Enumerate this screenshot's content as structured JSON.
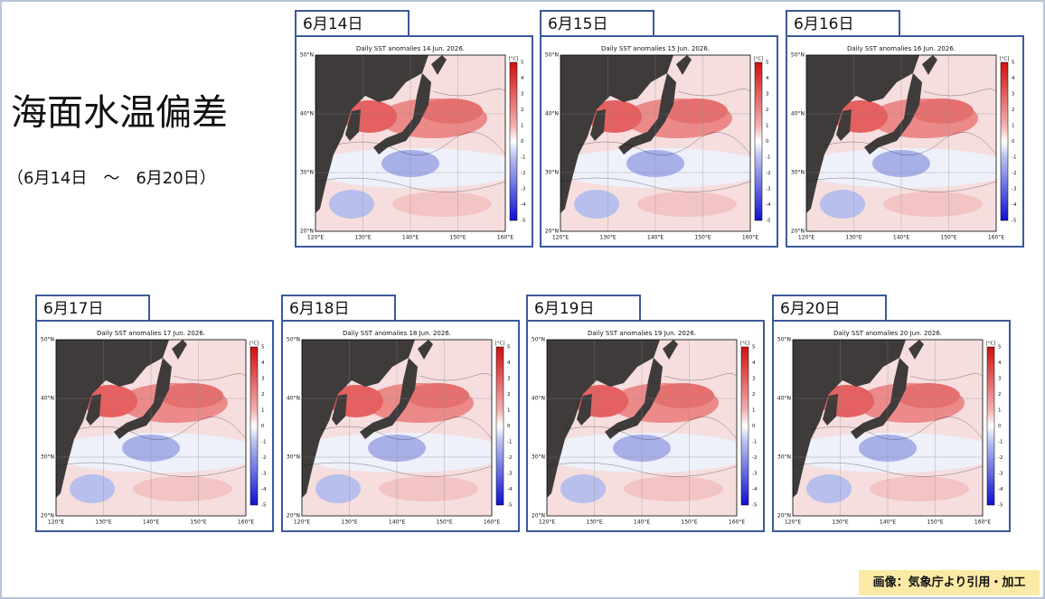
{
  "header": {
    "title": "海面水温偏差",
    "period": "（6月14日　～　6月20日）"
  },
  "map_axes": {
    "lat_labels": [
      "50°N",
      "40°N",
      "30°N",
      "20°N"
    ],
    "lon_labels": [
      "120°E",
      "130°E",
      "140°E",
      "150°E",
      "160°E"
    ],
    "colorbar_unit": "[°C]",
    "colorbar_labels": [
      "5",
      "4",
      "3",
      "2",
      "1",
      "0",
      "-1",
      "-2",
      "-3",
      "-4",
      "-5"
    ]
  },
  "panels": [
    {
      "date": "6月14日",
      "title": "Daily SST anomalies 14 Jun. 2026."
    },
    {
      "date": "6月15日",
      "title": "Daily SST anomalies 15 Jun. 2026."
    },
    {
      "date": "6月16日",
      "title": "Daily SST anomalies 16 Jun. 2026."
    },
    {
      "date": "6月17日",
      "title": "Daily SST anomalies 17 Jun. 2026."
    },
    {
      "date": "6月18日",
      "title": "Daily SST anomalies 18 Jun. 2026."
    },
    {
      "date": "6月19日",
      "title": "Daily SST anomalies 19 Jun. 2026."
    },
    {
      "date": "6月20日",
      "title": "Daily SST anomalies 20 Jun. 2026."
    }
  ],
  "credit": "画像：気象庁より引用・加工"
}
